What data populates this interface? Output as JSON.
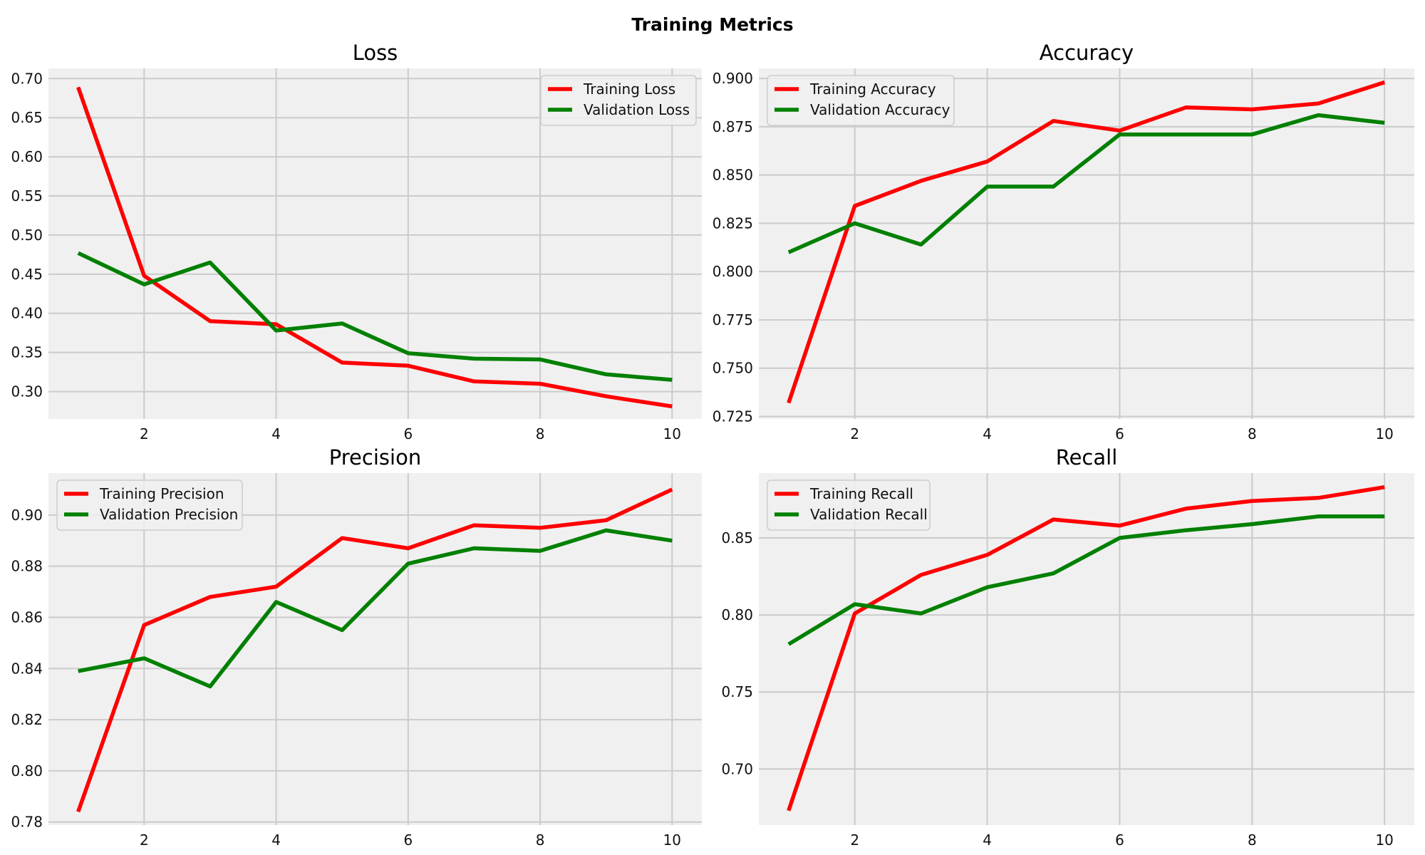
{
  "figure": {
    "title": "Training Metrics"
  },
  "chart_data": [
    {
      "type": "line",
      "title": "Loss",
      "xlabel": "",
      "ylabel": "",
      "x": [
        1,
        2,
        3,
        4,
        5,
        6,
        7,
        8,
        9,
        10
      ],
      "xlim": [
        0.55,
        10.45
      ],
      "ylim": [
        0.265,
        0.713
      ],
      "xticks": [
        2,
        4,
        6,
        8,
        10
      ],
      "yticks": [
        0.3,
        0.35,
        0.4,
        0.45,
        0.5,
        0.55,
        0.6,
        0.65,
        0.7
      ],
      "ytick_labels": [
        "0.30",
        "0.35",
        "0.40",
        "0.45",
        "0.50",
        "0.55",
        "0.60",
        "0.65",
        "0.70"
      ],
      "grid": true,
      "legend_position": "upper right",
      "series": [
        {
          "name": "Training Loss",
          "color": "#ff0000",
          "values": [
            0.689,
            0.448,
            0.39,
            0.386,
            0.337,
            0.333,
            0.313,
            0.31,
            0.294,
            0.281
          ]
        },
        {
          "name": "Validation Loss",
          "color": "#008000",
          "values": [
            0.477,
            0.437,
            0.465,
            0.378,
            0.387,
            0.349,
            0.342,
            0.341,
            0.322,
            0.315
          ]
        }
      ]
    },
    {
      "type": "line",
      "title": "Accuracy",
      "xlabel": "",
      "ylabel": "",
      "x": [
        1,
        2,
        3,
        4,
        5,
        6,
        7,
        8,
        9,
        10
      ],
      "xlim": [
        0.55,
        10.45
      ],
      "ylim": [
        0.7237,
        0.9052
      ],
      "xticks": [
        2,
        4,
        6,
        8,
        10
      ],
      "yticks": [
        0.725,
        0.75,
        0.775,
        0.8,
        0.825,
        0.85,
        0.875,
        0.9
      ],
      "ytick_labels": [
        "0.725",
        "0.750",
        "0.775",
        "0.800",
        "0.825",
        "0.850",
        "0.875",
        "0.900"
      ],
      "grid": true,
      "legend_position": "upper left",
      "series": [
        {
          "name": "Training Accuracy",
          "color": "#ff0000",
          "values": [
            0.732,
            0.834,
            0.847,
            0.857,
            0.878,
            0.873,
            0.885,
            0.884,
            0.887,
            0.898
          ]
        },
        {
          "name": "Validation Accuracy",
          "color": "#008000",
          "values": [
            0.81,
            0.825,
            0.814,
            0.844,
            0.844,
            0.871,
            0.871,
            0.871,
            0.881,
            0.877
          ]
        }
      ]
    },
    {
      "type": "line",
      "title": "Precision",
      "xlabel": "",
      "ylabel": "",
      "x": [
        1,
        2,
        3,
        4,
        5,
        6,
        7,
        8,
        9,
        10
      ],
      "xlim": [
        0.55,
        10.45
      ],
      "ylim": [
        0.7788,
        0.9164
      ],
      "xticks": [
        2,
        4,
        6,
        8,
        10
      ],
      "yticks": [
        0.78,
        0.8,
        0.82,
        0.84,
        0.86,
        0.88,
        0.9
      ],
      "ytick_labels": [
        "0.78",
        "0.80",
        "0.82",
        "0.84",
        "0.86",
        "0.88",
        "0.90"
      ],
      "grid": true,
      "legend_position": "upper left",
      "series": [
        {
          "name": "Training Precision",
          "color": "#ff0000",
          "values": [
            0.784,
            0.857,
            0.868,
            0.872,
            0.891,
            0.887,
            0.896,
            0.895,
            0.898,
            0.91
          ]
        },
        {
          "name": "Validation Precision",
          "color": "#008000",
          "values": [
            0.839,
            0.844,
            0.833,
            0.866,
            0.855,
            0.881,
            0.887,
            0.886,
            0.894,
            0.89
          ]
        }
      ]
    },
    {
      "type": "line",
      "title": "Recall",
      "xlabel": "",
      "ylabel": "",
      "x": [
        1,
        2,
        3,
        4,
        5,
        6,
        7,
        8,
        9,
        10
      ],
      "xlim": [
        0.55,
        10.45
      ],
      "ylim": [
        0.6636,
        0.8921
      ],
      "xticks": [
        2,
        4,
        6,
        8,
        10
      ],
      "yticks": [
        0.7,
        0.75,
        0.8,
        0.85
      ],
      "ytick_labels": [
        "0.70",
        "0.75",
        "0.80",
        "0.85"
      ],
      "grid": true,
      "legend_position": "upper left",
      "series": [
        {
          "name": "Training Recall",
          "color": "#ff0000",
          "values": [
            0.673,
            0.801,
            0.826,
            0.839,
            0.862,
            0.858,
            0.869,
            0.874,
            0.876,
            0.883
          ]
        },
        {
          "name": "Validation Recall",
          "color": "#008000",
          "values": [
            0.781,
            0.807,
            0.801,
            0.818,
            0.827,
            0.85,
            0.855,
            0.859,
            0.864,
            0.864
          ]
        }
      ]
    }
  ]
}
